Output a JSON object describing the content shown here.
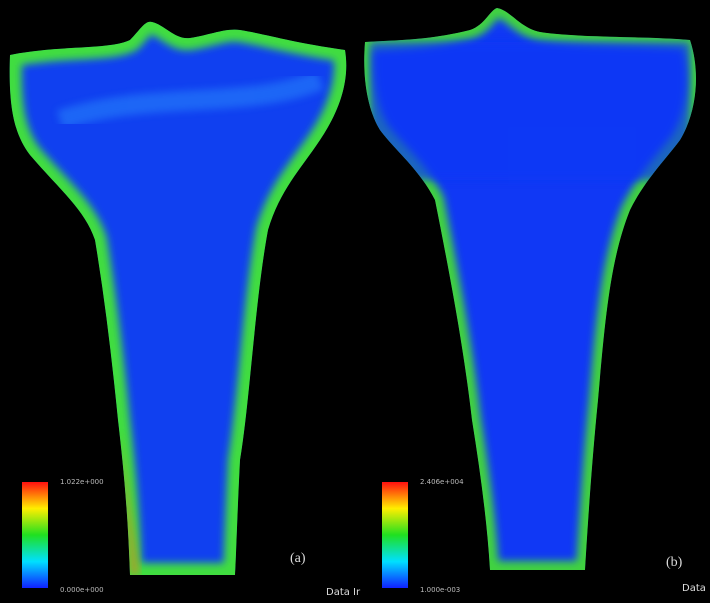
{
  "panels": [
    {
      "label": "(a)",
      "legend": {
        "max": "1.022e+000",
        "min": "0.000e+000"
      },
      "caption": "Data Ir"
    },
    {
      "label": "(b)",
      "legend": {
        "max": "2.406e+004",
        "min": "1.000e-003"
      },
      "caption": "Data I"
    }
  ]
}
